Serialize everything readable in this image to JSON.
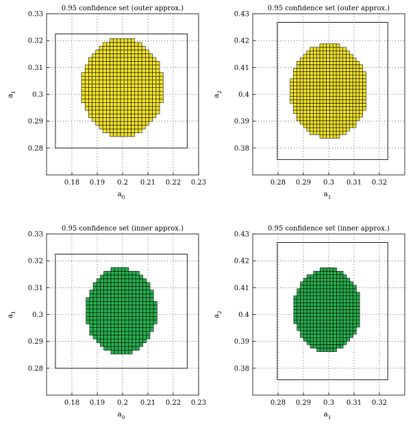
{
  "chart_data": [
    {
      "type": "box-paving",
      "title": "0.95 confidence set (outer approx.)",
      "xlabel": {
        "base": "a",
        "sub": "0"
      },
      "ylabel": {
        "base": "a",
        "sub": "1"
      },
      "xlim": [
        0.17,
        0.23
      ],
      "ylim": [
        0.27,
        0.33
      ],
      "xticks": [
        "0.18",
        "0.19",
        "0.2",
        "0.21",
        "0.22",
        "0.23"
      ],
      "yticks": [
        "0.28",
        "0.29",
        "0.3",
        "0.31",
        "0.32",
        "0.33"
      ],
      "grid": "dotted",
      "fill": "#f5e52a",
      "rect": {
        "x0": 0.1735,
        "x1": 0.2255,
        "y0": 0.28,
        "y1": 0.3225
      },
      "set": {
        "cx": 0.2,
        "cy": 0.3025,
        "rx": 0.0162,
        "ry": 0.0182
      },
      "cell": 0.0014
    },
    {
      "type": "box-paving",
      "title": "0.95 confidence set (outer approx.)",
      "xlabel": {
        "base": "a",
        "sub": "1"
      },
      "ylabel": {
        "base": "a",
        "sub": "2"
      },
      "xlim": [
        0.27,
        0.33
      ],
      "ylim": [
        0.37,
        0.43
      ],
      "xticks": [
        "0.28",
        "0.29",
        "0.3",
        "0.31",
        "0.32"
      ],
      "yticks": [
        "0.38",
        "0.39",
        "0.4",
        "0.41",
        "0.42",
        "0.43"
      ],
      "grid": "dotted",
      "fill": "#f5e52a",
      "rect": {
        "x0": 0.2797,
        "x1": 0.3233,
        "y0": 0.3757,
        "y1": 0.4268
      },
      "set": {
        "cx": 0.3,
        "cy": 0.4012,
        "rx": 0.0152,
        "ry": 0.0175
      },
      "cell": 0.0013
    },
    {
      "type": "box-paving",
      "title": "0.95 confidence set (inner approx.)",
      "xlabel": {
        "base": "a",
        "sub": "0"
      },
      "ylabel": {
        "base": "a",
        "sub": "1"
      },
      "xlim": [
        0.17,
        0.23
      ],
      "ylim": [
        0.27,
        0.33
      ],
      "xticks": [
        "0.18",
        "0.19",
        "0.2",
        "0.21",
        "0.22",
        "0.23"
      ],
      "yticks": [
        "0.28",
        "0.29",
        "0.3",
        "0.31",
        "0.32",
        "0.33"
      ],
      "grid": "dotted",
      "fill": "#27b04e",
      "rect": {
        "x0": 0.1735,
        "x1": 0.2255,
        "y0": 0.28,
        "y1": 0.3225
      },
      "set": {
        "cx": 0.1995,
        "cy": 0.3013,
        "rx": 0.0139,
        "ry": 0.016
      },
      "cell": 0.0014
    },
    {
      "type": "box-paving",
      "title": "0.95 confidence set (inner approx.)",
      "xlabel": {
        "base": "a",
        "sub": "1"
      },
      "ylabel": {
        "base": "a",
        "sub": "2"
      },
      "xlim": [
        0.27,
        0.33
      ],
      "ylim": [
        0.37,
        0.43
      ],
      "xticks": [
        "0.28",
        "0.29",
        "0.3",
        "0.31",
        "0.32"
      ],
      "yticks": [
        "0.38",
        "0.39",
        "0.4",
        "0.41",
        "0.42",
        "0.43"
      ],
      "grid": "dotted",
      "fill": "#27b04e",
      "rect": {
        "x0": 0.2797,
        "x1": 0.3233,
        "y0": 0.3757,
        "y1": 0.4268
      },
      "set": {
        "cx": 0.2995,
        "cy": 0.4017,
        "rx": 0.0133,
        "ry": 0.0155
      },
      "cell": 0.0013
    }
  ]
}
